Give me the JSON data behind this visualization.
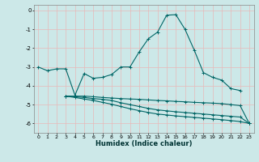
{
  "title": "",
  "xlabel": "Humidex (Indice chaleur)",
  "background_color": "#cce8e8",
  "grid_color": "#e8b8b8",
  "line_color": "#006666",
  "xlim": [
    -0.5,
    23.5
  ],
  "ylim": [
    -6.5,
    0.3
  ],
  "yticks": [
    0,
    -1,
    -2,
    -3,
    -4,
    -5,
    -6
  ],
  "xticks": [
    0,
    1,
    2,
    3,
    4,
    5,
    6,
    7,
    8,
    9,
    10,
    11,
    12,
    13,
    14,
    15,
    16,
    17,
    18,
    19,
    20,
    21,
    22,
    23
  ],
  "lines": [
    {
      "x": [
        0,
        1,
        2,
        3,
        4,
        5,
        6,
        7,
        8,
        9,
        10,
        11,
        12,
        13,
        14,
        15,
        16,
        17,
        18,
        19,
        20,
        21,
        22
      ],
      "y": [
        -3.0,
        -3.2,
        -3.1,
        -3.1,
        -4.5,
        -3.35,
        -3.6,
        -3.55,
        -3.4,
        -3.0,
        -3.0,
        -2.2,
        -1.5,
        -1.15,
        -0.25,
        -0.22,
        -1.0,
        -2.1,
        -3.3,
        -3.55,
        -3.7,
        -4.15,
        -4.25
      ]
    },
    {
      "x": [
        3,
        4,
        5,
        6,
        7,
        8,
        9,
        10,
        11,
        12,
        13,
        14,
        15,
        16,
        17,
        18,
        19,
        20,
        21,
        22,
        23
      ],
      "y": [
        -4.55,
        -4.55,
        -4.55,
        -4.58,
        -4.62,
        -4.65,
        -4.68,
        -4.7,
        -4.72,
        -4.75,
        -4.78,
        -4.8,
        -4.83,
        -4.85,
        -4.88,
        -4.9,
        -4.92,
        -4.95,
        -5.0,
        -5.05,
        -6.0
      ]
    },
    {
      "x": [
        3,
        4,
        5,
        6,
        7,
        8,
        9,
        10,
        11,
        12,
        13,
        14,
        15,
        16,
        17,
        18,
        19,
        20,
        21,
        22,
        23
      ],
      "y": [
        -4.55,
        -4.58,
        -4.62,
        -4.68,
        -4.72,
        -4.78,
        -4.9,
        -5.0,
        -5.1,
        -5.2,
        -5.28,
        -5.33,
        -5.38,
        -5.42,
        -5.46,
        -5.5,
        -5.54,
        -5.58,
        -5.62,
        -5.66,
        -6.0
      ]
    },
    {
      "x": [
        3,
        4,
        5,
        6,
        7,
        8,
        9,
        10,
        11,
        12,
        13,
        14,
        15,
        16,
        17,
        18,
        19,
        20,
        21,
        22,
        23
      ],
      "y": [
        -4.55,
        -4.62,
        -4.7,
        -4.78,
        -4.88,
        -4.98,
        -5.1,
        -5.22,
        -5.32,
        -5.42,
        -5.5,
        -5.55,
        -5.6,
        -5.64,
        -5.68,
        -5.72,
        -5.76,
        -5.8,
        -5.85,
        -5.9,
        -6.0
      ]
    }
  ]
}
